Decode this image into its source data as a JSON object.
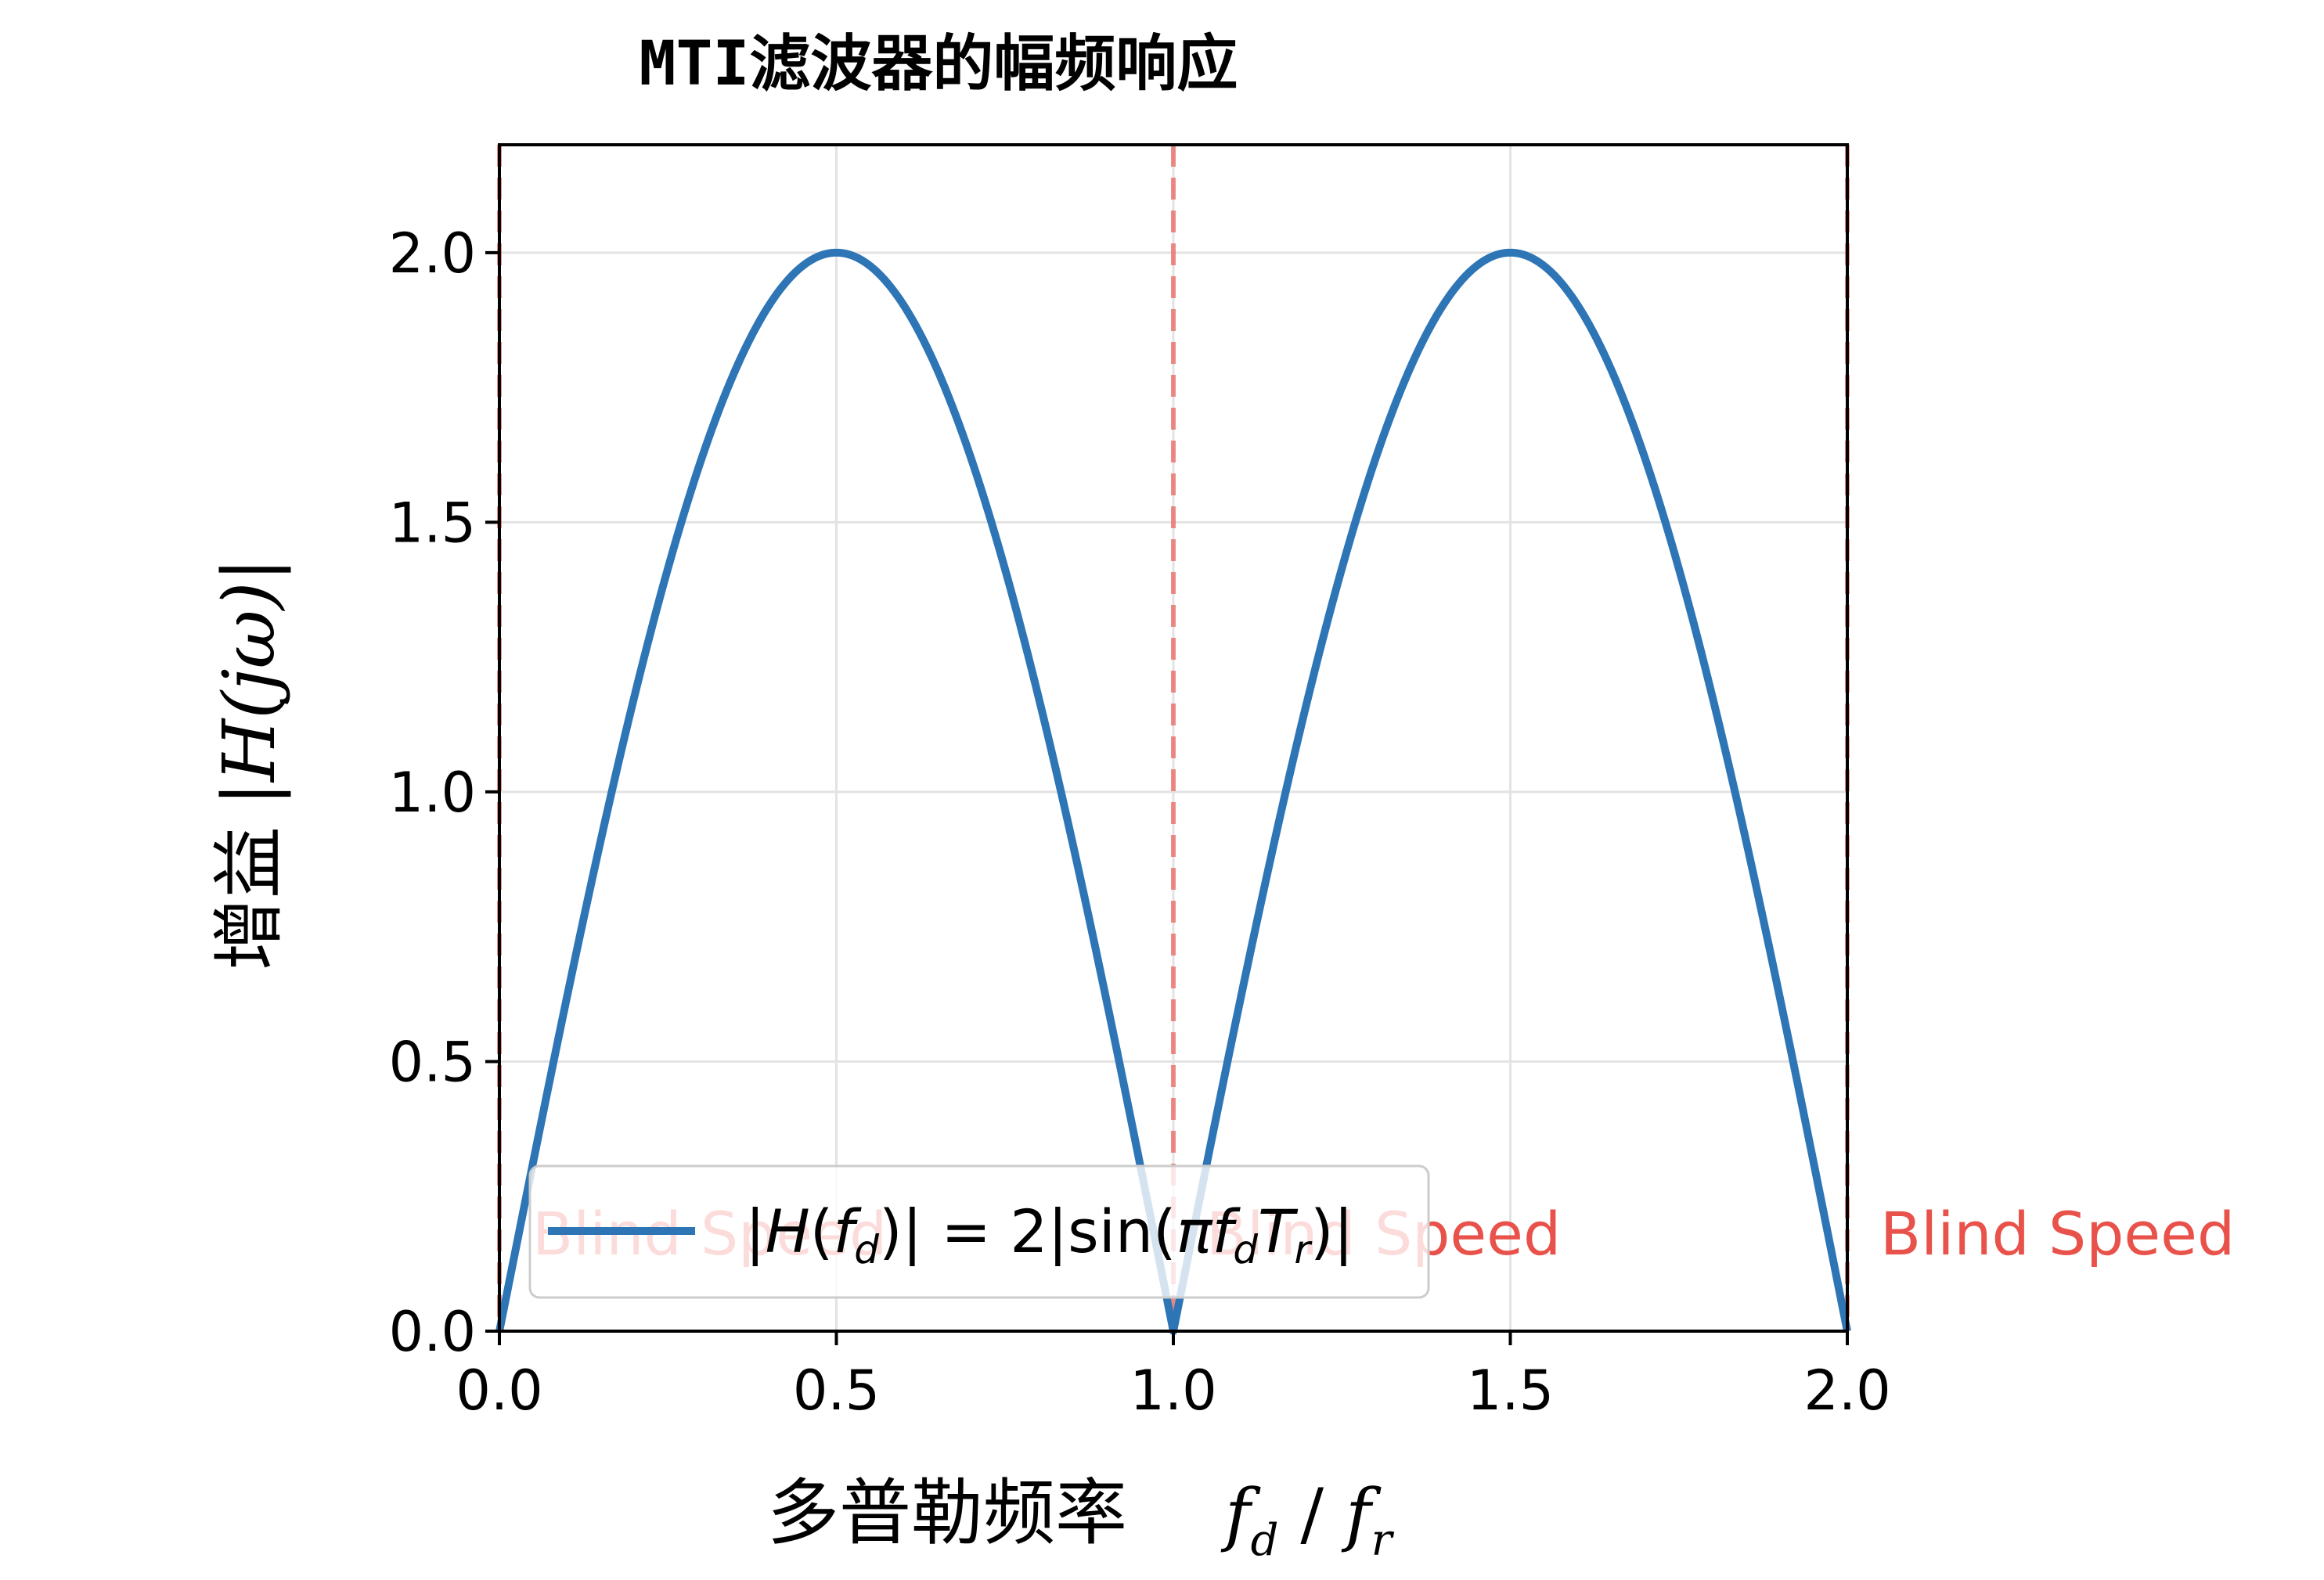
{
  "chart_data": {
    "type": "line",
    "title": "MTI滤波器的幅频响应",
    "xlabel_text": "多普勒频率",
    "xlabel_math": "f_d / f_r",
    "ylabel_text": "增益",
    "ylabel_math": "|H(jω)|",
    "xlim": [
      0,
      2
    ],
    "ylim": [
      0,
      2.2
    ],
    "xticks": [
      0,
      0.5,
      1,
      1.5,
      2
    ],
    "xtick_labels": [
      "0.0",
      "0.5",
      "1.0",
      "1.5",
      "2.0"
    ],
    "yticks": [
      0,
      0.5,
      1,
      1.5,
      2
    ],
    "ytick_labels": [
      "0.0",
      "0.5",
      "1.0",
      "1.5",
      "2.0"
    ],
    "grid": true,
    "legend_position": "lower-left",
    "series": [
      {
        "name": "|H(f_d)| = 2|sin(πf_dT_r)|",
        "function": "2*abs(sin(pi*x))",
        "color": "#2e75b6",
        "x": [
          0,
          0.25,
          0.5,
          0.75,
          1.0,
          1.25,
          1.5,
          1.75,
          2.0
        ],
        "values": [
          0,
          1.414,
          2.0,
          1.414,
          0,
          1.414,
          2.0,
          1.414,
          0
        ]
      }
    ],
    "blind_speed_lines": [
      0,
      1,
      2
    ],
    "blind_speed_color": "#e8524a",
    "annotations": [
      {
        "x": 0,
        "text": "Blind Speed"
      },
      {
        "x": 1,
        "text": "Blind Speed"
      },
      {
        "x": 2,
        "text": "Blind Speed"
      }
    ]
  }
}
